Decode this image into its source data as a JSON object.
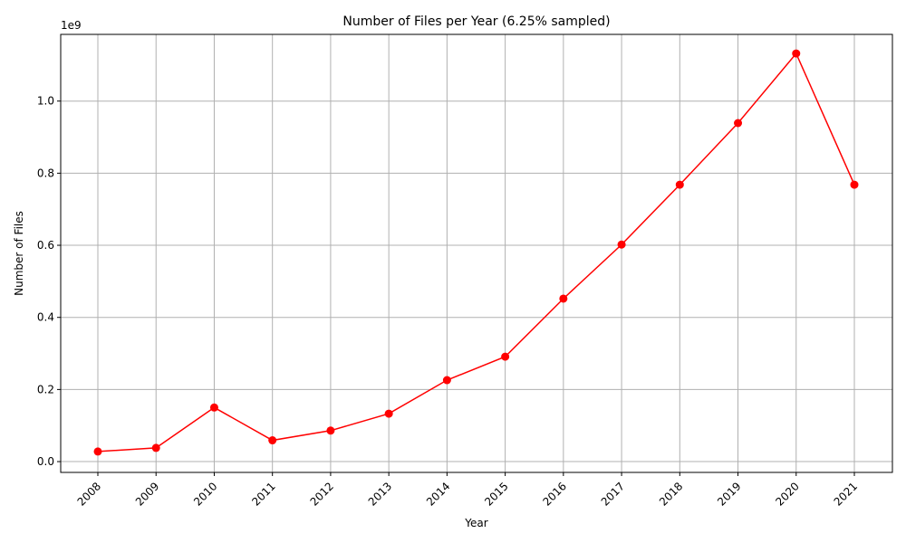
{
  "chart_data": {
    "type": "line",
    "title": "Number of Files per Year (6.25% sampled)",
    "xlabel": "Year",
    "ylabel": "Number of Files",
    "y_offset_text": "1e9",
    "x": [
      "2008",
      "2009",
      "2010",
      "2011",
      "2012",
      "2013",
      "2014",
      "2015",
      "2016",
      "2017",
      "2018",
      "2019",
      "2020",
      "2021"
    ],
    "series": [
      {
        "values": [
          0.028,
          0.038,
          0.15,
          0.059,
          0.086,
          0.133,
          0.226,
          0.291,
          0.452,
          0.602,
          0.768,
          0.939,
          1.132,
          0.768
        ],
        "color": "#ff0000",
        "marker": "circle"
      }
    ],
    "y_scale_multiplier": 1000000000,
    "yticks": [
      "0.0",
      "0.2",
      "0.4",
      "0.6",
      "0.8",
      "1.0"
    ],
    "ylim": [
      -0.03,
      1.185
    ],
    "grid": true,
    "x_tick_rotation_deg": 45
  }
}
